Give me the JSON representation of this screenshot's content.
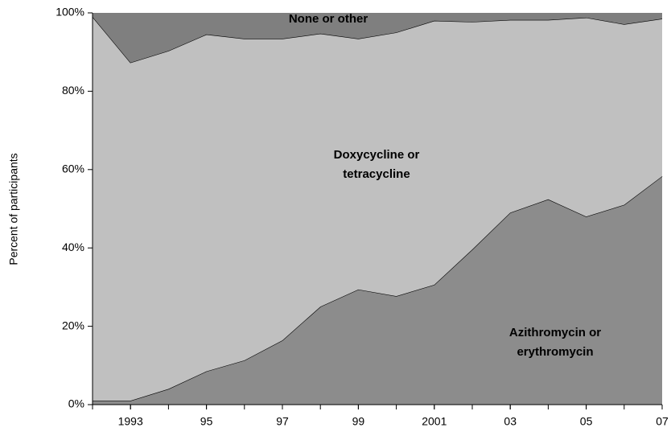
{
  "chart_data": {
    "type": "area",
    "stacked": true,
    "y_label": "Percent of participants",
    "x": [
      1992,
      1993,
      1994,
      1995,
      1996,
      1997,
      1998,
      1999,
      2000,
      2001,
      2002,
      2003,
      2004,
      2005,
      2006,
      2007
    ],
    "xlim": [
      1992,
      2007
    ],
    "xticks": [
      {
        "value": 1993,
        "label": "1993"
      },
      {
        "value": 1995,
        "label": "95"
      },
      {
        "value": 1997,
        "label": "97"
      },
      {
        "value": 1999,
        "label": "99"
      },
      {
        "value": 2001,
        "label": "2001"
      },
      {
        "value": 2003,
        "label": "03"
      },
      {
        "value": 2005,
        "label": "05"
      },
      {
        "value": 2007,
        "label": "07"
      }
    ],
    "ylim": [
      0,
      100
    ],
    "yticks": [
      {
        "value": 0,
        "label": "0%"
      },
      {
        "value": 20,
        "label": "20%"
      },
      {
        "value": 40,
        "label": "40%"
      },
      {
        "value": 60,
        "label": "60%"
      },
      {
        "value": 80,
        "label": "80%"
      },
      {
        "value": 100,
        "label": "100%"
      }
    ],
    "series": [
      {
        "name": "Azithromycin or erythromycin",
        "color": "#8c8c8c",
        "values": [
          1,
          1,
          4,
          8.5,
          11.3,
          16.4,
          25,
          29.4,
          27.7,
          30.6,
          39.6,
          49,
          52.4,
          48,
          51,
          58.3
        ]
      },
      {
        "name": "Doxycycline or tetracycline",
        "color": "#c0c0c0",
        "values": [
          98,
          86.3,
          86.3,
          86,
          82.1,
          77,
          69.7,
          64,
          67.3,
          67.4,
          58.1,
          49.2,
          45.8,
          50.8,
          46.1,
          40.2
        ]
      },
      {
        "name": "None or other",
        "color": "#7f7f7f",
        "values": [
          1,
          12.7,
          9.7,
          5.5,
          6.6,
          6.6,
          5.3,
          6.6,
          5,
          2,
          2.3,
          1.8,
          1.8,
          1.2,
          2.9,
          1.5
        ]
      }
    ]
  }
}
